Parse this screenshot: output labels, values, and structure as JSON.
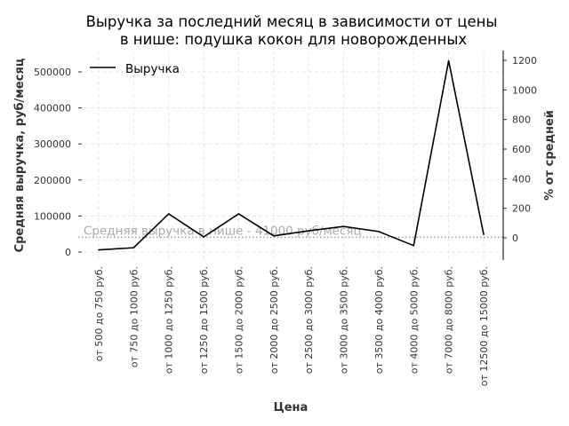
{
  "chart_data": {
    "type": "line",
    "title": "Выручка за последний месяц в зависимости от цены",
    "title_line2": "в нише: подушка кокон для новорожденных",
    "xlabel": "Цена",
    "ylabel": "Средняя выручка, руб/месяц",
    "ylabel_right": "% от средней",
    "legend": {
      "label": "Выручка",
      "placement": "top-left"
    },
    "categories": [
      "от 500 до 750 руб.",
      "от 750 до 1000 руб.",
      "от 1000 до 1250 руб.",
      "от 1250 до 1500 руб.",
      "от 1500 до 2000 руб.",
      "от 2000 до 2500 руб.",
      "от 2500 до 3000 руб.",
      "от 3000 до 3500 руб.",
      "от 3500 до 4000 руб.",
      "от 4000 до 5000 руб.",
      "от 7000 до 8000 руб.",
      "от 12500 до 15000 руб."
    ],
    "series": [
      {
        "name": "Выручка",
        "values": [
          6000,
          12000,
          106000,
          42000,
          106000,
          45000,
          59000,
          71000,
          57000,
          18000,
          531000,
          49000
        ]
      }
    ],
    "ylim": [
      -20000,
      560000
    ],
    "yticks": [
      0,
      100000,
      200000,
      300000,
      400000,
      500000
    ],
    "ytick_labels": [
      "0",
      "100000",
      "200000",
      "300000",
      "400000",
      "500000"
    ],
    "yticks_right": [
      0,
      200,
      400,
      600,
      800,
      1000,
      1200
    ],
    "ytick_right_labels": [
      "0",
      "200",
      "400",
      "600",
      "800",
      "1000",
      "1200"
    ],
    "average": {
      "value": 41000,
      "label": "Средняя выручка в нише - 41000 руб/месяц"
    },
    "grid": true
  }
}
